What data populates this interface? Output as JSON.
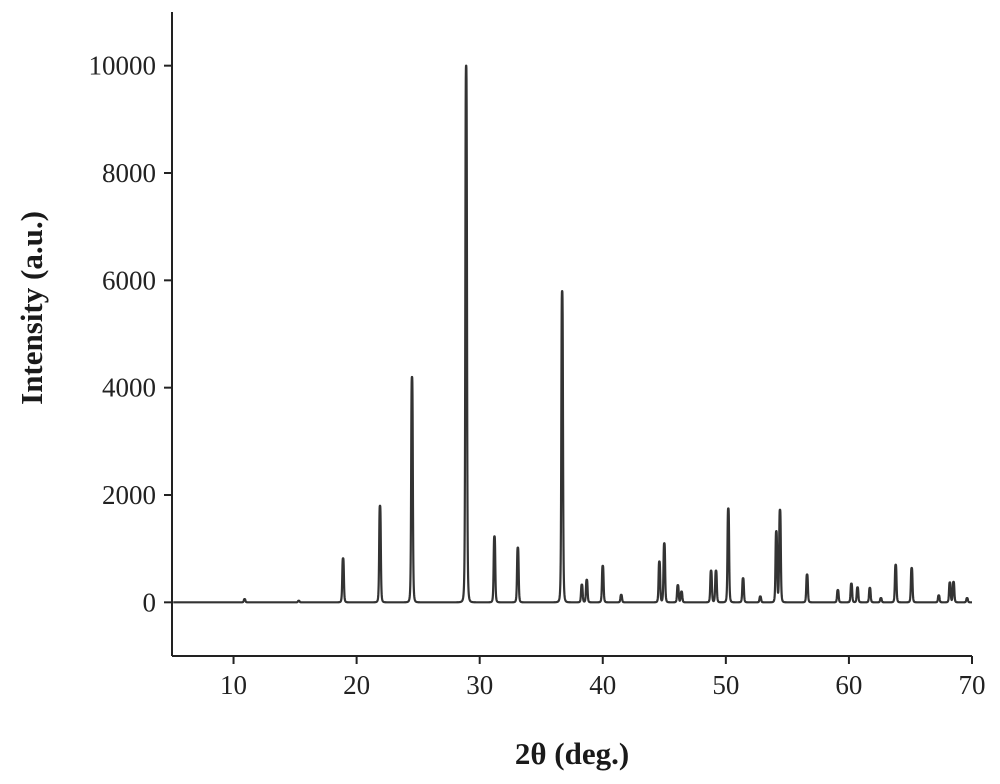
{
  "chart_data": {
    "type": "line",
    "title": "",
    "xlabel": "2θ (deg.)",
    "ylabel": "Intensity (a.u.)",
    "xlim": [
      5,
      70
    ],
    "ylim": [
      -1000,
      11000
    ],
    "xticks": [
      10,
      20,
      30,
      40,
      50,
      60,
      70
    ],
    "yticks": [
      0,
      2000,
      4000,
      6000,
      8000,
      10000
    ],
    "grid": false,
    "legend": "none",
    "line_color": "#333333",
    "baseline": 0,
    "series": [
      {
        "peaks": [
          {
            "x": 10.9,
            "y": 60
          },
          {
            "x": 15.3,
            "y": 30
          },
          {
            "x": 18.9,
            "y": 820
          },
          {
            "x": 21.9,
            "y": 1800
          },
          {
            "x": 24.5,
            "y": 4200
          },
          {
            "x": 28.9,
            "y": 10000
          },
          {
            "x": 31.2,
            "y": 1230
          },
          {
            "x": 33.1,
            "y": 1020
          },
          {
            "x": 36.7,
            "y": 5800
          },
          {
            "x": 38.3,
            "y": 330
          },
          {
            "x": 38.7,
            "y": 420
          },
          {
            "x": 40.0,
            "y": 680
          },
          {
            "x": 41.5,
            "y": 140
          },
          {
            "x": 44.6,
            "y": 760
          },
          {
            "x": 45.0,
            "y": 1100
          },
          {
            "x": 46.1,
            "y": 320
          },
          {
            "x": 46.4,
            "y": 200
          },
          {
            "x": 48.8,
            "y": 590
          },
          {
            "x": 49.2,
            "y": 590
          },
          {
            "x": 50.2,
            "y": 1750
          },
          {
            "x": 51.4,
            "y": 450
          },
          {
            "x": 52.8,
            "y": 110
          },
          {
            "x": 54.1,
            "y": 1320
          },
          {
            "x": 54.4,
            "y": 1720
          },
          {
            "x": 56.6,
            "y": 520
          },
          {
            "x": 59.1,
            "y": 230
          },
          {
            "x": 60.2,
            "y": 350
          },
          {
            "x": 60.7,
            "y": 280
          },
          {
            "x": 61.7,
            "y": 270
          },
          {
            "x": 62.6,
            "y": 80
          },
          {
            "x": 63.8,
            "y": 700
          },
          {
            "x": 65.1,
            "y": 640
          },
          {
            "x": 67.3,
            "y": 130
          },
          {
            "x": 68.2,
            "y": 370
          },
          {
            "x": 68.5,
            "y": 380
          },
          {
            "x": 69.6,
            "y": 80
          }
        ]
      }
    ]
  }
}
